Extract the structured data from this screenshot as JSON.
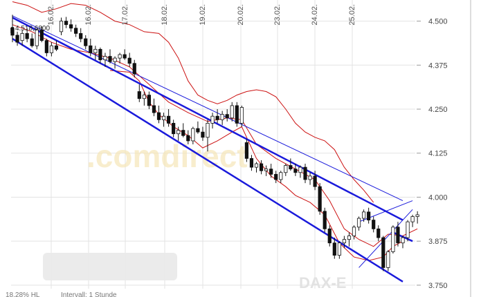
{
  "chart_data": {
    "type": "candlestick",
    "title": "",
    "xlabel": "",
    "ylabel": "",
    "instrument_label": "DAX-E",
    "watermark": ".comdirect",
    "high_label": "4.518,6800",
    "footer": {
      "left": "18,28% HL",
      "interval": "Intervall: 1 Stunde"
    },
    "x_dates": [
      "16.02.",
      "16.02.",
      "17.02.",
      "18.02.",
      "19.02.",
      "20.02.",
      "23.02.",
      "24.02.",
      "25.02."
    ],
    "y_ticks": [
      "4.500",
      "4.375",
      "4.250",
      "4.125",
      "4.000",
      "3.875",
      "3.750"
    ],
    "y_tick_values": [
      4500,
      4375,
      4250,
      4125,
      4000,
      3875,
      3750
    ],
    "ylim": [
      3740,
      4560
    ],
    "grid": true,
    "y_axis_side": "right",
    "colors": {
      "channel": "#1a1adb",
      "bands": "#cc1111",
      "up": "#ffffff",
      "down": "#111111",
      "grid": "#e3e3e3"
    },
    "candles": [
      [
        4480,
        4518,
        4440,
        4460
      ],
      [
        4460,
        4470,
        4430,
        4440
      ],
      [
        4445,
        4475,
        4430,
        4465
      ],
      [
        4465,
        4480,
        4440,
        4450
      ],
      [
        4450,
        4465,
        4425,
        4430
      ],
      [
        4430,
        4480,
        4420,
        4475
      ],
      [
        4475,
        4485,
        4440,
        4445
      ],
      [
        4445,
        4450,
        4400,
        4410
      ],
      [
        4410,
        4440,
        4400,
        4430
      ],
      [
        4430,
        4445,
        4415,
        4420
      ],
      [
        4470,
        4510,
        4460,
        4500
      ],
      [
        4500,
        4512,
        4480,
        4490
      ],
      [
        4490,
        4505,
        4470,
        4480
      ],
      [
        4480,
        4490,
        4455,
        4465
      ],
      [
        4465,
        4480,
        4440,
        4450
      ],
      [
        4450,
        4460,
        4420,
        4430
      ],
      [
        4430,
        4450,
        4400,
        4410
      ],
      [
        4410,
        4430,
        4390,
        4420
      ],
      [
        4420,
        4425,
        4380,
        4390
      ],
      [
        4390,
        4410,
        4370,
        4400
      ],
      [
        4400,
        4420,
        4380,
        4385
      ],
      [
        4385,
        4400,
        4365,
        4395
      ],
      [
        4395,
        4410,
        4380,
        4405
      ],
      [
        4405,
        4420,
        4390,
        4395
      ],
      [
        4395,
        4410,
        4370,
        4380
      ],
      [
        4380,
        4390,
        4340,
        4350
      ],
      [
        4300,
        4320,
        4270,
        4280
      ],
      [
        4280,
        4300,
        4260,
        4290
      ],
      [
        4290,
        4300,
        4250,
        4260
      ],
      [
        4260,
        4280,
        4230,
        4240
      ],
      [
        4240,
        4260,
        4210,
        4220
      ],
      [
        4220,
        4240,
        4200,
        4230
      ],
      [
        4230,
        4250,
        4200,
        4210
      ],
      [
        4210,
        4220,
        4170,
        4180
      ],
      [
        4180,
        4200,
        4160,
        4190
      ],
      [
        4190,
        4210,
        4170,
        4175
      ],
      [
        4175,
        4190,
        4150,
        4160
      ],
      [
        4160,
        4200,
        4150,
        4195
      ],
      [
        4195,
        4215,
        4180,
        4185
      ],
      [
        4185,
        4200,
        4160,
        4170
      ],
      [
        4170,
        4220,
        4130,
        4210
      ],
      [
        4210,
        4240,
        4195,
        4230
      ],
      [
        4230,
        4250,
        4210,
        4220
      ],
      [
        4220,
        4245,
        4205,
        4235
      ],
      [
        4235,
        4250,
        4215,
        4225
      ],
      [
        4225,
        4270,
        4215,
        4260
      ],
      [
        4260,
        4270,
        4200,
        4210
      ],
      [
        4210,
        4260,
        4200,
        4255
      ],
      [
        4155,
        4165,
        4100,
        4110
      ],
      [
        4110,
        4120,
        4075,
        4085
      ],
      [
        4085,
        4100,
        4070,
        4095
      ],
      [
        4095,
        4105,
        4065,
        4075
      ],
      [
        4075,
        4090,
        4060,
        4080
      ],
      [
        4080,
        4095,
        4055,
        4065
      ],
      [
        4065,
        4075,
        4040,
        4050
      ],
      [
        4050,
        4075,
        4040,
        4070
      ],
      [
        4070,
        4095,
        4060,
        4090
      ],
      [
        4090,
        4110,
        4075,
        4080
      ],
      [
        4080,
        4095,
        4060,
        4070
      ],
      [
        4070,
        4090,
        4055,
        4085
      ],
      [
        4085,
        4095,
        4040,
        4050
      ],
      [
        4050,
        4070,
        4035,
        4060
      ],
      [
        4060,
        4075,
        4020,
        4030
      ],
      [
        4030,
        4040,
        3950,
        3960
      ],
      [
        3960,
        3970,
        3900,
        3910
      ],
      [
        3910,
        3920,
        3860,
        3870
      ],
      [
        3870,
        3885,
        3825,
        3835
      ],
      [
        3835,
        3875,
        3825,
        3870
      ],
      [
        3870,
        3890,
        3855,
        3880
      ],
      [
        3880,
        3900,
        3860,
        3890
      ],
      [
        3890,
        3920,
        3880,
        3915
      ],
      [
        3915,
        3945,
        3905,
        3940
      ],
      [
        3940,
        3965,
        3930,
        3958
      ],
      [
        3958,
        3970,
        3925,
        3935
      ],
      [
        3935,
        3945,
        3900,
        3910
      ],
      [
        3910,
        3920,
        3875,
        3885
      ],
      [
        3885,
        3890,
        3790,
        3800
      ],
      [
        3800,
        3850,
        3790,
        3845
      ],
      [
        3845,
        3920,
        3840,
        3915
      ],
      [
        3915,
        3930,
        3860,
        3870
      ],
      [
        3870,
        3890,
        3855,
        3885
      ],
      [
        3885,
        3935,
        3875,
        3930
      ],
      [
        3930,
        3950,
        3915,
        3945
      ],
      [
        3945,
        3960,
        3925,
        3950
      ]
    ],
    "channel_lower": [
      [
        0,
        4450
      ],
      [
        80,
        3760
      ]
    ],
    "channel_upper_parallel": [
      [
        0,
        4510
      ],
      [
        80,
        3935
      ]
    ],
    "channel_upper_thin": [
      [
        0,
        4515
      ],
      [
        80,
        3990
      ]
    ],
    "triangle_lines": [
      {
        "from": [
          71,
          3800
        ],
        "to": [
          82,
          3965
        ],
        "kind": "thin"
      },
      {
        "from": [
          71,
          3930
        ],
        "to": [
          82,
          3990
        ],
        "kind": "thin"
      },
      {
        "from": [
          78,
          3900
        ],
        "to": [
          82,
          3875
        ],
        "kind": "arrow"
      }
    ],
    "band_upper": [
      [
        0,
        4555
      ],
      [
        3,
        4545
      ],
      [
        6,
        4525
      ],
      [
        9,
        4535
      ],
      [
        12,
        4550
      ],
      [
        15,
        4545
      ],
      [
        18,
        4525
      ],
      [
        21,
        4500
      ],
      [
        24,
        4490
      ],
      [
        27,
        4470
      ],
      [
        30,
        4465
      ],
      [
        32,
        4440
      ],
      [
        34,
        4395
      ],
      [
        36,
        4330
      ],
      [
        38,
        4290
      ],
      [
        40,
        4275
      ],
      [
        42,
        4265
      ],
      [
        44,
        4275
      ],
      [
        46,
        4290
      ],
      [
        48,
        4300
      ],
      [
        50,
        4305
      ],
      [
        52,
        4300
      ],
      [
        54,
        4285
      ],
      [
        56,
        4250
      ],
      [
        58,
        4210
      ],
      [
        60,
        4185
      ],
      [
        62,
        4170
      ],
      [
        64,
        4160
      ],
      [
        66,
        4135
      ],
      [
        68,
        4085
      ],
      [
        70,
        4050
      ],
      [
        72,
        4020
      ],
      [
        74,
        3985
      ]
    ],
    "band_mid": [
      [
        0,
        4490
      ],
      [
        4,
        4470
      ],
      [
        8,
        4440
      ],
      [
        12,
        4420
      ],
      [
        16,
        4410
      ],
      [
        20,
        4395
      ],
      [
        24,
        4370
      ],
      [
        28,
        4320
      ],
      [
        32,
        4270
      ],
      [
        36,
        4240
      ],
      [
        40,
        4215
      ],
      [
        44,
        4225
      ],
      [
        47,
        4220
      ],
      [
        50,
        4150
      ],
      [
        54,
        4110
      ],
      [
        58,
        4080
      ],
      [
        62,
        4050
      ],
      [
        65,
        3990
      ],
      [
        68,
        3910
      ],
      [
        71,
        3880
      ],
      [
        74,
        3860
      ],
      [
        77,
        3895
      ],
      [
        80,
        3890
      ],
      [
        83,
        3910
      ]
    ],
    "band_lower": [
      [
        20,
        4360
      ],
      [
        24,
        4355
      ],
      [
        26,
        4330
      ],
      [
        28,
        4270
      ],
      [
        30,
        4235
      ],
      [
        33,
        4200
      ],
      [
        36,
        4175
      ],
      [
        39,
        4140
      ],
      [
        42,
        4160
      ],
      [
        45,
        4185
      ],
      [
        47,
        4200
      ],
      [
        50,
        4110
      ],
      [
        53,
        4060
      ],
      [
        56,
        4030
      ],
      [
        58,
        4005
      ],
      [
        61,
        3985
      ],
      [
        64,
        3950
      ],
      [
        67,
        3870
      ],
      [
        70,
        3830
      ],
      [
        73,
        3820
      ],
      [
        76,
        3830
      ],
      [
        78,
        3860
      ],
      [
        80,
        3875
      ]
    ]
  }
}
